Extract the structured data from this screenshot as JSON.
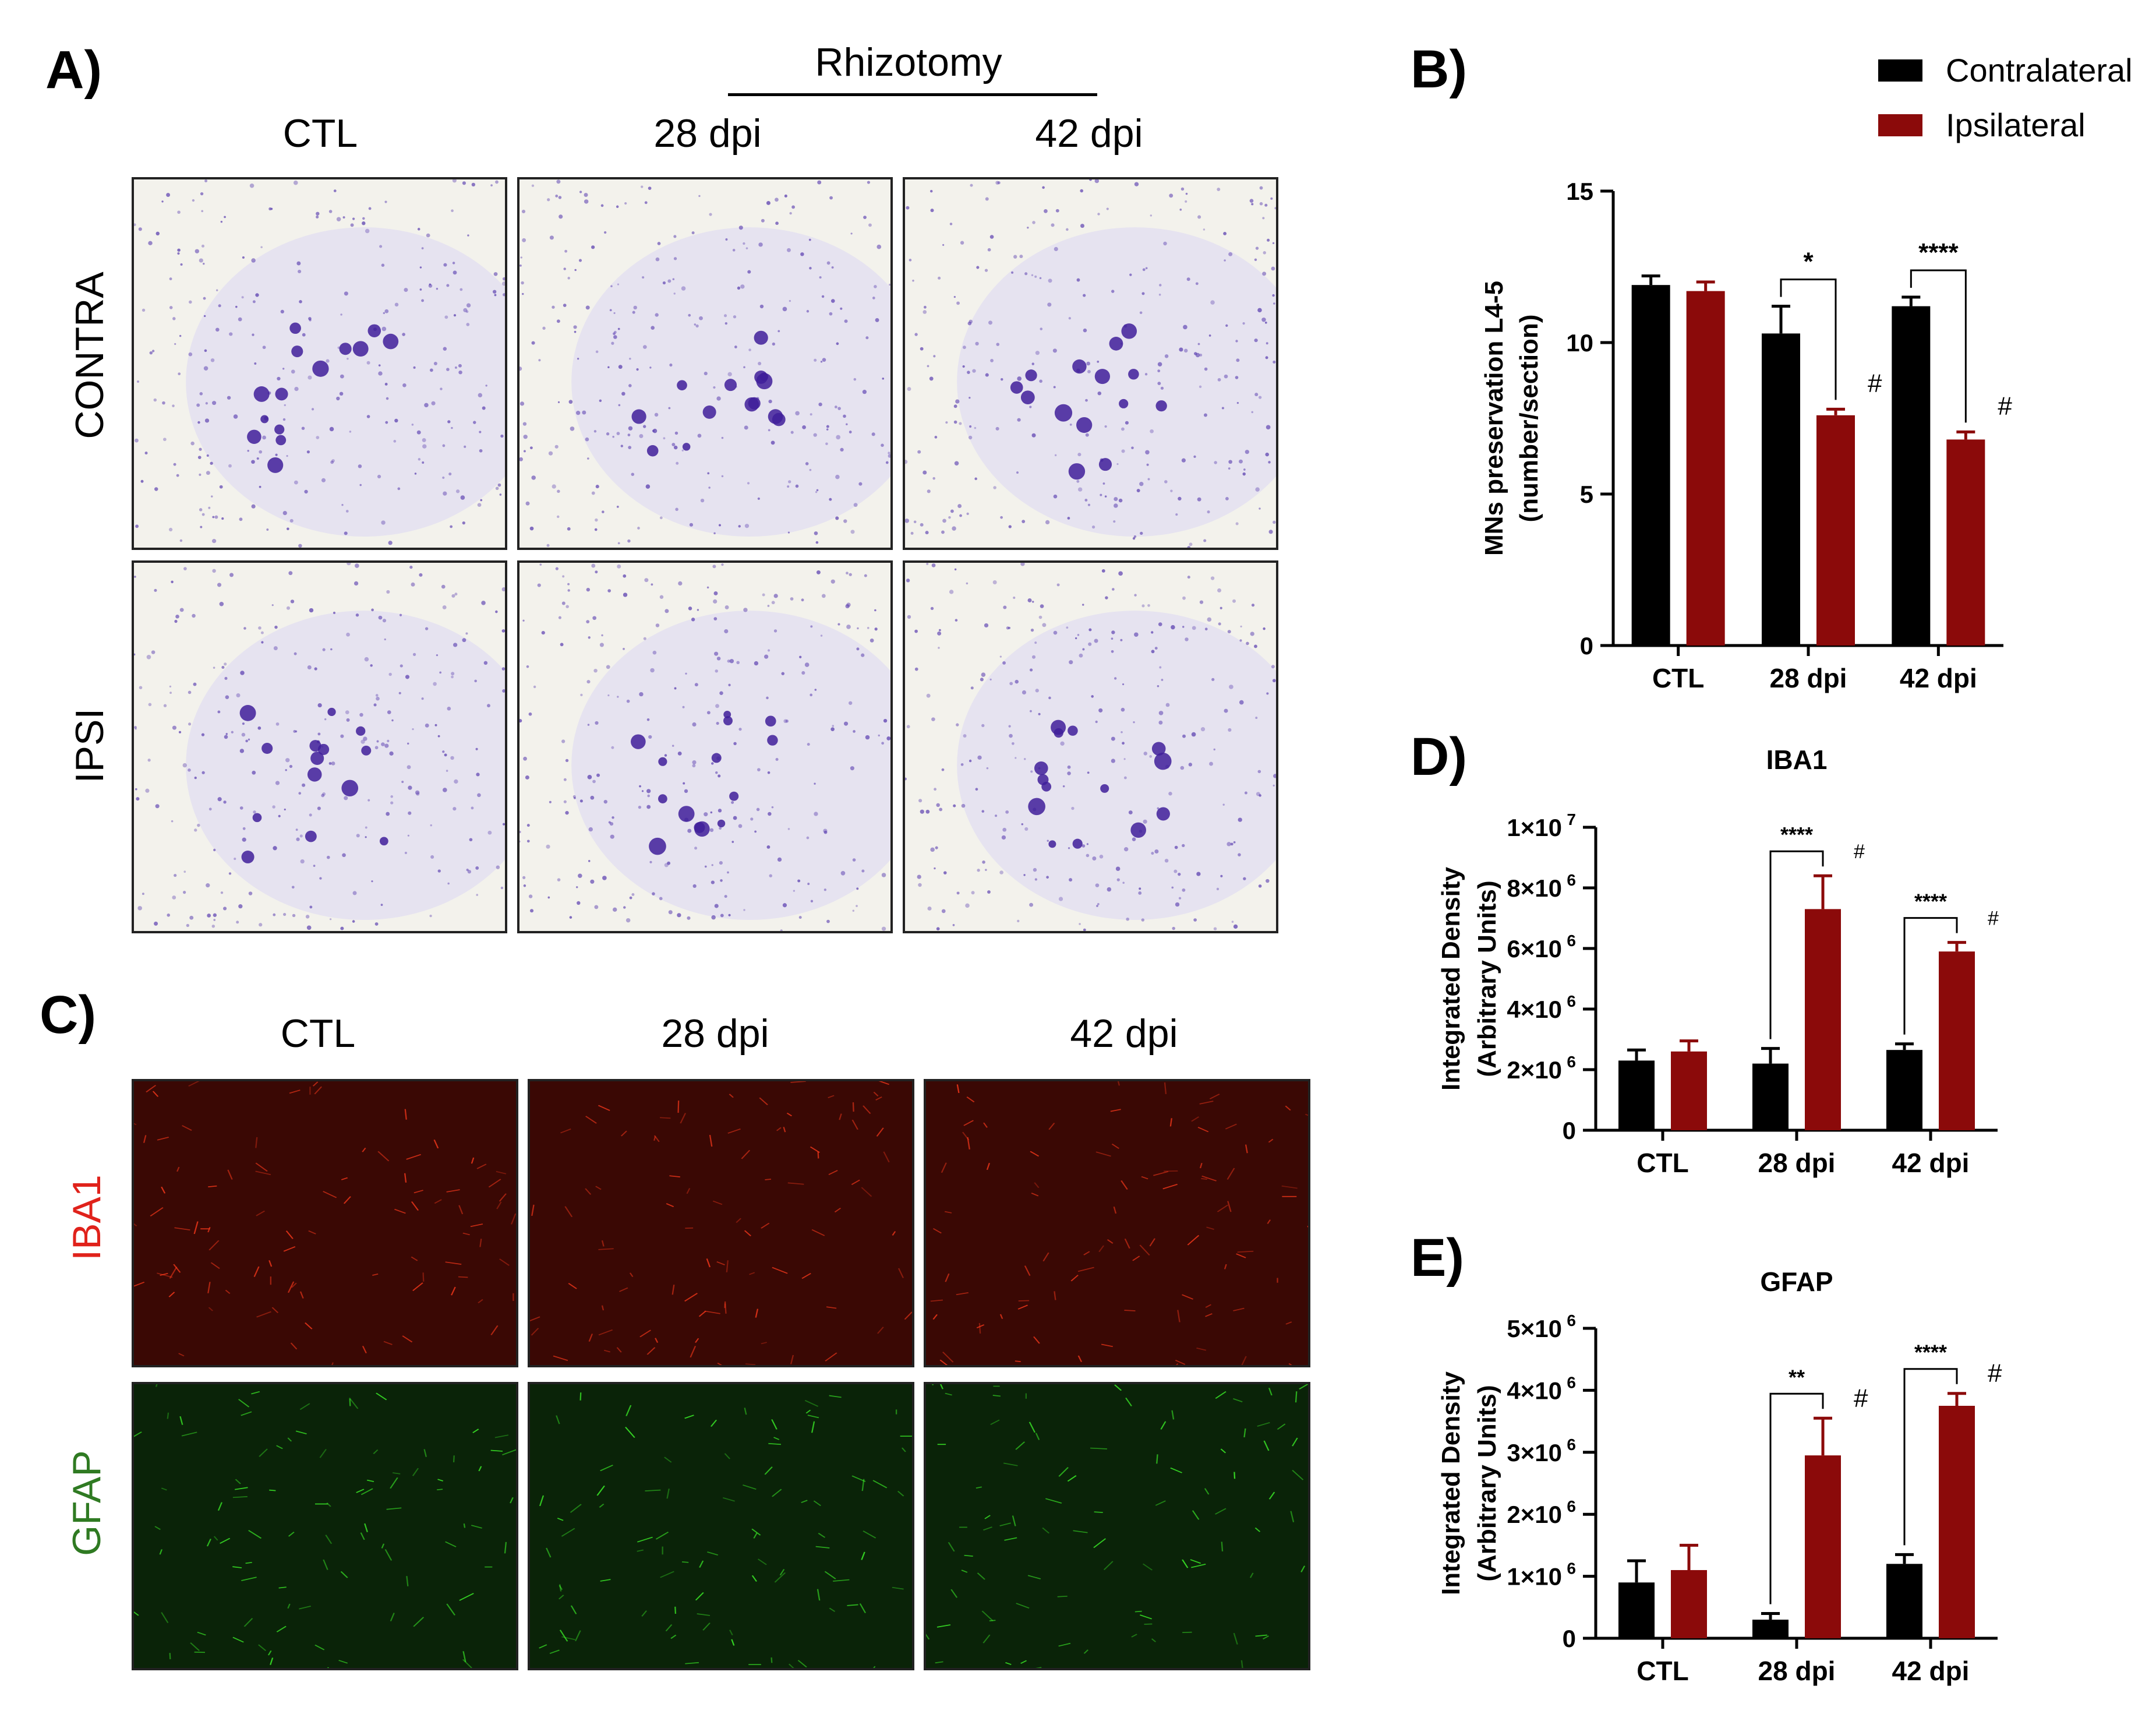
{
  "panelA": {
    "label": "A)",
    "rhizotomy": "Rhizotomy",
    "columns": [
      "CTL",
      "28 dpi",
      "42 dpi"
    ],
    "rows": [
      "CONTRA",
      "IPSI"
    ]
  },
  "panelC": {
    "label": "C)",
    "columns": [
      "CTL",
      "28 dpi",
      "42 dpi"
    ],
    "rows": [
      "IBA1",
      "GFAP"
    ],
    "row_colors": [
      "#e0221b",
      "#2f7a22"
    ]
  },
  "legend": {
    "items": [
      {
        "name": "Contralateral",
        "color": "#000000"
      },
      {
        "name": "Ipsilateral",
        "color": "#8b0a0a"
      }
    ]
  },
  "colors": {
    "contra": "#000000",
    "ipsi": "#8b0a0a",
    "nissl": "#5b3fb0",
    "iba1_bg": "#3a0804",
    "gfap_bg": "#0a2308"
  },
  "chart_data": [
    {
      "id": "B",
      "label": "B)",
      "type": "bar",
      "title": "",
      "categories": [
        "CTL",
        "28 dpi",
        "42 dpi"
      ],
      "series": [
        {
          "name": "Contralateral",
          "values": [
            11.9,
            10.3,
            11.2
          ],
          "errors": [
            0.3,
            0.9,
            0.3
          ]
        },
        {
          "name": "Ipsilateral",
          "values": [
            11.7,
            7.6,
            6.8
          ],
          "errors": [
            0.3,
            0.2,
            0.25
          ]
        }
      ],
      "ylabel": "MNs preservation L4-5",
      "ylabel2": "(number/section)",
      "ylim": [
        0,
        15
      ],
      "yticks": [
        0,
        5,
        10,
        15
      ],
      "ytick_labels": [
        "0",
        "5",
        "10",
        "15"
      ],
      "significance": [
        {
          "category": 1,
          "label": "*"
        },
        {
          "category": 2,
          "label": "****"
        }
      ],
      "hash": [
        1,
        2
      ],
      "hash_symbol": "#"
    },
    {
      "id": "D",
      "label": "D)",
      "type": "bar",
      "title": "IBA1",
      "categories": [
        "CTL",
        "28 dpi",
        "42 dpi"
      ],
      "series": [
        {
          "name": "Contralateral",
          "values": [
            2300000,
            2200000,
            2650000
          ],
          "errors": [
            350000,
            500000,
            200000
          ]
        },
        {
          "name": "Ipsilateral",
          "values": [
            2600000,
            7300000,
            5900000
          ],
          "errors": [
            350000,
            1100000,
            300000
          ]
        }
      ],
      "ylabel": "Integrated Density",
      "ylabel2": "(Arbitrary Units)",
      "ylim": [
        0,
        10000000
      ],
      "yticks": [
        0,
        2000000,
        4000000,
        6000000,
        8000000,
        10000000
      ],
      "ytick_labels": [
        "0",
        "2×10",
        "4×10",
        "6×10",
        "8×10",
        "1×10"
      ],
      "ytick_exps": [
        "",
        "6",
        "6",
        "6",
        "6",
        "7"
      ],
      "significance": [
        {
          "category": 1,
          "label": "****"
        },
        {
          "category": 2,
          "label": "****"
        }
      ],
      "hash": [
        1,
        2
      ],
      "hash_symbol": "#"
    },
    {
      "id": "E",
      "label": "E)",
      "type": "bar",
      "title": "GFAP",
      "categories": [
        "CTL",
        "28 dpi",
        "42 dpi"
      ],
      "series": [
        {
          "name": "Contralateral",
          "values": [
            900000,
            300000,
            1200000
          ],
          "errors": [
            350000,
            100000,
            150000
          ]
        },
        {
          "name": "Ipsilateral",
          "values": [
            1100000,
            2950000,
            3750000
          ],
          "errors": [
            400000,
            600000,
            200000
          ]
        }
      ],
      "ylabel": "Integrated Density",
      "ylabel2": "(Arbitrary Units)",
      "ylim": [
        0,
        5000000
      ],
      "yticks": [
        0,
        1000000,
        2000000,
        3000000,
        4000000,
        5000000
      ],
      "ytick_labels": [
        "0",
        "1×10",
        "2×10",
        "3×10",
        "4×10",
        "5×10"
      ],
      "ytick_exps": [
        "",
        "6",
        "6",
        "6",
        "6",
        "6"
      ],
      "significance": [
        {
          "category": 1,
          "label": "**"
        },
        {
          "category": 2,
          "label": "****"
        }
      ],
      "hash": [
        1,
        2
      ],
      "hash_symbol": "#"
    }
  ]
}
